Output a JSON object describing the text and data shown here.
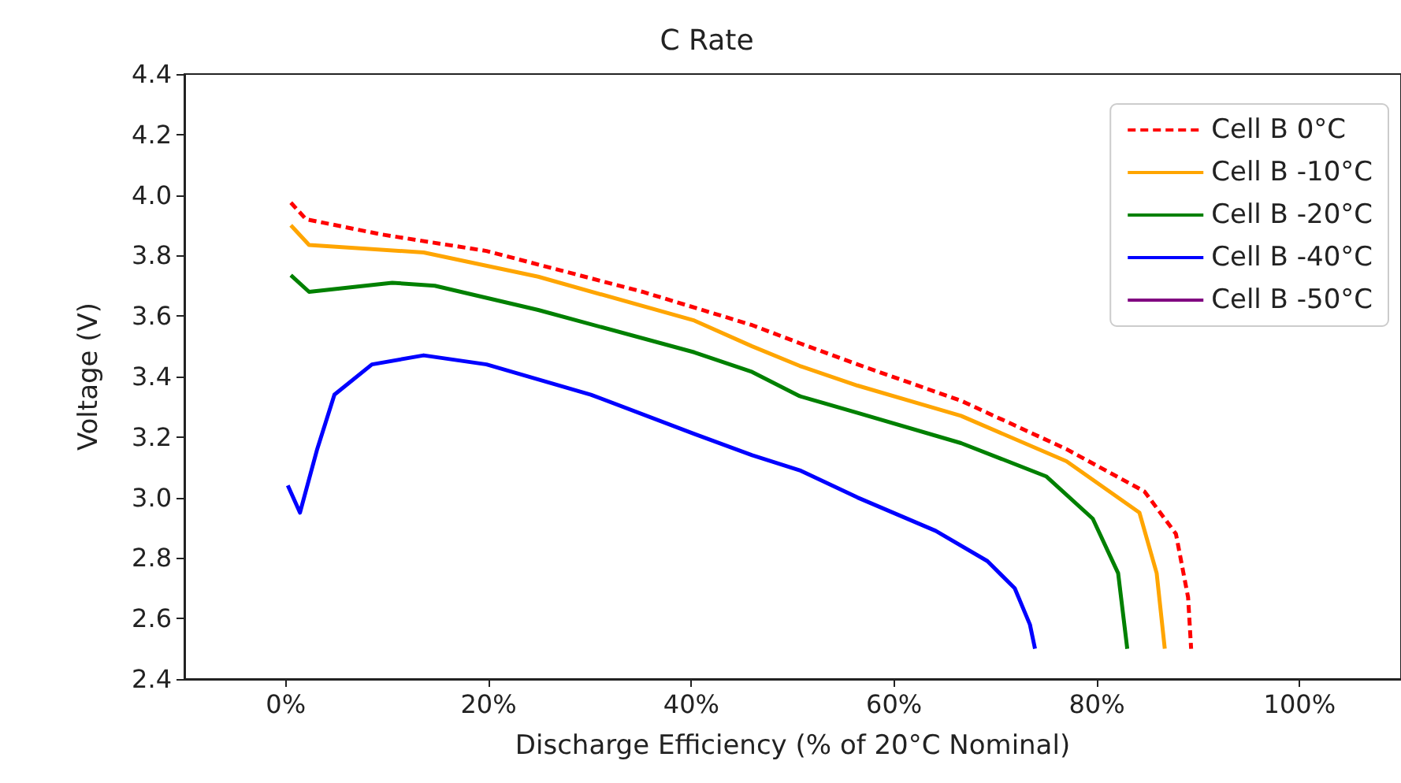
{
  "chart_data": {
    "type": "line",
    "title": "C Rate",
    "xlabel": "Discharge Efficiency (% of 20°C Nominal)",
    "ylabel": "Voltage (V)",
    "xlim": [
      -10,
      110
    ],
    "xticks": [
      {
        "value": 0,
        "label": "0%"
      },
      {
        "value": 20,
        "label": "20%"
      },
      {
        "value": 40,
        "label": "40%"
      },
      {
        "value": 60,
        "label": "60%"
      },
      {
        "value": 80,
        "label": "80%"
      },
      {
        "value": 100,
        "label": "100%"
      }
    ],
    "ylim": [
      2.4,
      4.4
    ],
    "yticks": [
      2.4,
      2.6,
      2.8,
      {
        "value": 3,
        "label": "3.0"
      },
      3.2,
      3.4,
      3.6,
      3.8,
      {
        "value": 4,
        "label": "4.0"
      },
      4.2,
      4.4
    ],
    "grid": false,
    "legend": "top right",
    "marker": "none",
    "series": [
      {
        "name": "Cell B 0°C",
        "color": "#ff0000",
        "line_style": "dashed",
        "x": [
          0.5,
          2.0,
          9.4,
          19.8,
          35.2,
          46,
          50.7,
          56.4,
          66.6,
          77,
          84.7,
          87.8,
          89,
          89.3
        ],
        "values": [
          3.975,
          3.92,
          3.87,
          3.815,
          3.68,
          3.57,
          3.51,
          3.44,
          3.32,
          3.16,
          3.02,
          2.88,
          2.67,
          2.5
        ]
      },
      {
        "name": "Cell B -10°C",
        "color": "#ffa500",
        "line_style": "solid",
        "x": [
          0.5,
          2.3,
          13.6,
          24.9,
          40.3,
          46,
          50.7,
          56.4,
          66.6,
          77,
          84.2,
          85.9,
          86.7
        ],
        "values": [
          3.9,
          3.835,
          3.81,
          3.73,
          3.585,
          3.5,
          3.435,
          3.37,
          3.27,
          3.12,
          2.95,
          2.75,
          2.5
        ]
      },
      {
        "name": "Cell B -20°C",
        "color": "#008000",
        "line_style": "solid",
        "x": [
          0.5,
          2.3,
          10.5,
          14.7,
          24.9,
          40.3,
          46,
          50.7,
          56.4,
          66.6,
          75,
          79.6,
          82.1,
          83
        ],
        "values": [
          3.735,
          3.68,
          3.71,
          3.7,
          3.62,
          3.48,
          3.415,
          3.335,
          3.28,
          3.18,
          3.07,
          2.93,
          2.75,
          2.5
        ]
      },
      {
        "name": "Cell B -40°C",
        "color": "#0000ff",
        "line_style": "solid",
        "x": [
          0.2,
          1.4,
          3.1,
          4.8,
          8.5,
          13.6,
          19.8,
          30.1,
          40.3,
          46,
          50.7,
          56.4,
          64.1,
          69.2,
          71.9,
          73.4,
          73.9
        ],
        "values": [
          3.04,
          2.95,
          3.16,
          3.34,
          3.44,
          3.47,
          3.44,
          3.34,
          3.21,
          3.14,
          3.09,
          3.0,
          2.89,
          2.79,
          2.7,
          2.58,
          2.5
        ]
      },
      {
        "name": "Cell B -50°C",
        "color": "#800080",
        "line_style": "solid"
      }
    ]
  }
}
